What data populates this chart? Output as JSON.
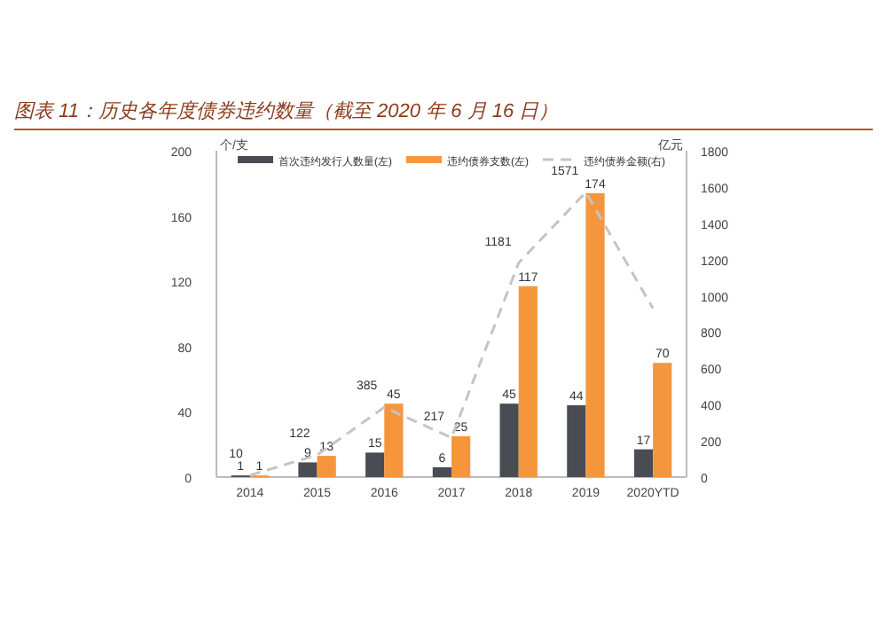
{
  "chart_data": {
    "type": "bar",
    "title": "图表 11：历史各年度债券违约数量（截至 2020 年 6 月 16 日）",
    "ylabel": "个/支",
    "y2label": "亿元",
    "categories": [
      "2014",
      "2015",
      "2016",
      "2017",
      "2018",
      "2019",
      "2020YTD"
    ],
    "series": [
      {
        "name": "首次违约发行人数量(左)",
        "color": "#4a4c53",
        "values": [
          1,
          9,
          15,
          6,
          45,
          44,
          17
        ],
        "value_labels": [
          "1",
          "9",
          "15",
          "6",
          "45",
          "44",
          "17"
        ]
      },
      {
        "name": "违约债券支数(左)",
        "color": "#f5963c",
        "values": [
          1,
          13,
          45,
          25,
          117,
          174,
          70
        ],
        "value_labels": [
          "1",
          "13",
          "45",
          "25",
          "117",
          "174",
          "70"
        ]
      },
      {
        "name": "违约债券金额(右)",
        "type": "line",
        "axis": "y2",
        "line_style": "dashed",
        "color": "#c4c4c4",
        "values": [
          10,
          122,
          385,
          217,
          1181,
          1571,
          930
        ],
        "value_labels": [
          "10",
          "122",
          "385",
          "217",
          "1181",
          "1571",
          null
        ]
      }
    ],
    "ylim": [
      0,
      200
    ],
    "yticks": [
      0,
      40,
      80,
      120,
      160,
      200
    ],
    "y2lim": [
      0,
      1800
    ],
    "y2ticks": [
      0,
      200,
      400,
      600,
      800,
      1000,
      1200,
      1400,
      1600,
      1800
    ],
    "legend": "top",
    "grid": false
  }
}
